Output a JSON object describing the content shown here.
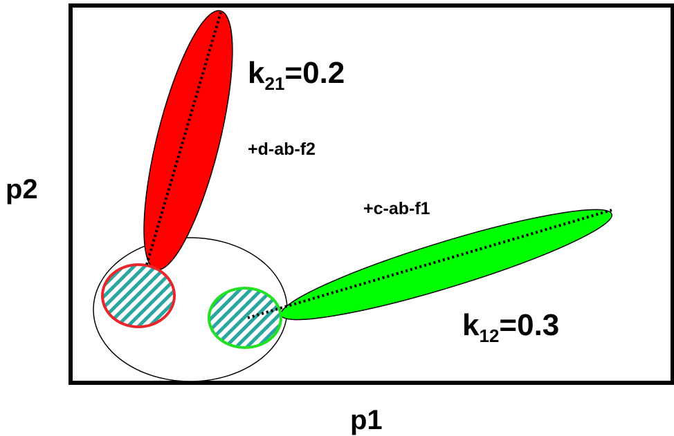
{
  "axes": {
    "x_label": "p1",
    "y_label": "p2"
  },
  "annotations": {
    "k21": {
      "base": "k",
      "sub": "21",
      "value": "=0.2"
    },
    "k12": {
      "base": "k",
      "sub": "12",
      "value": "=0.3"
    },
    "term_f2": "+d-ab-f2",
    "term_f1": "+c-ab-f1"
  },
  "colors": {
    "red_region": "#ff0000",
    "green_region": "#00ff00",
    "red_outline": "#e8262b",
    "green_outline": "#22e022",
    "hatch": "#2aa6a0",
    "frame": "#000000"
  }
}
